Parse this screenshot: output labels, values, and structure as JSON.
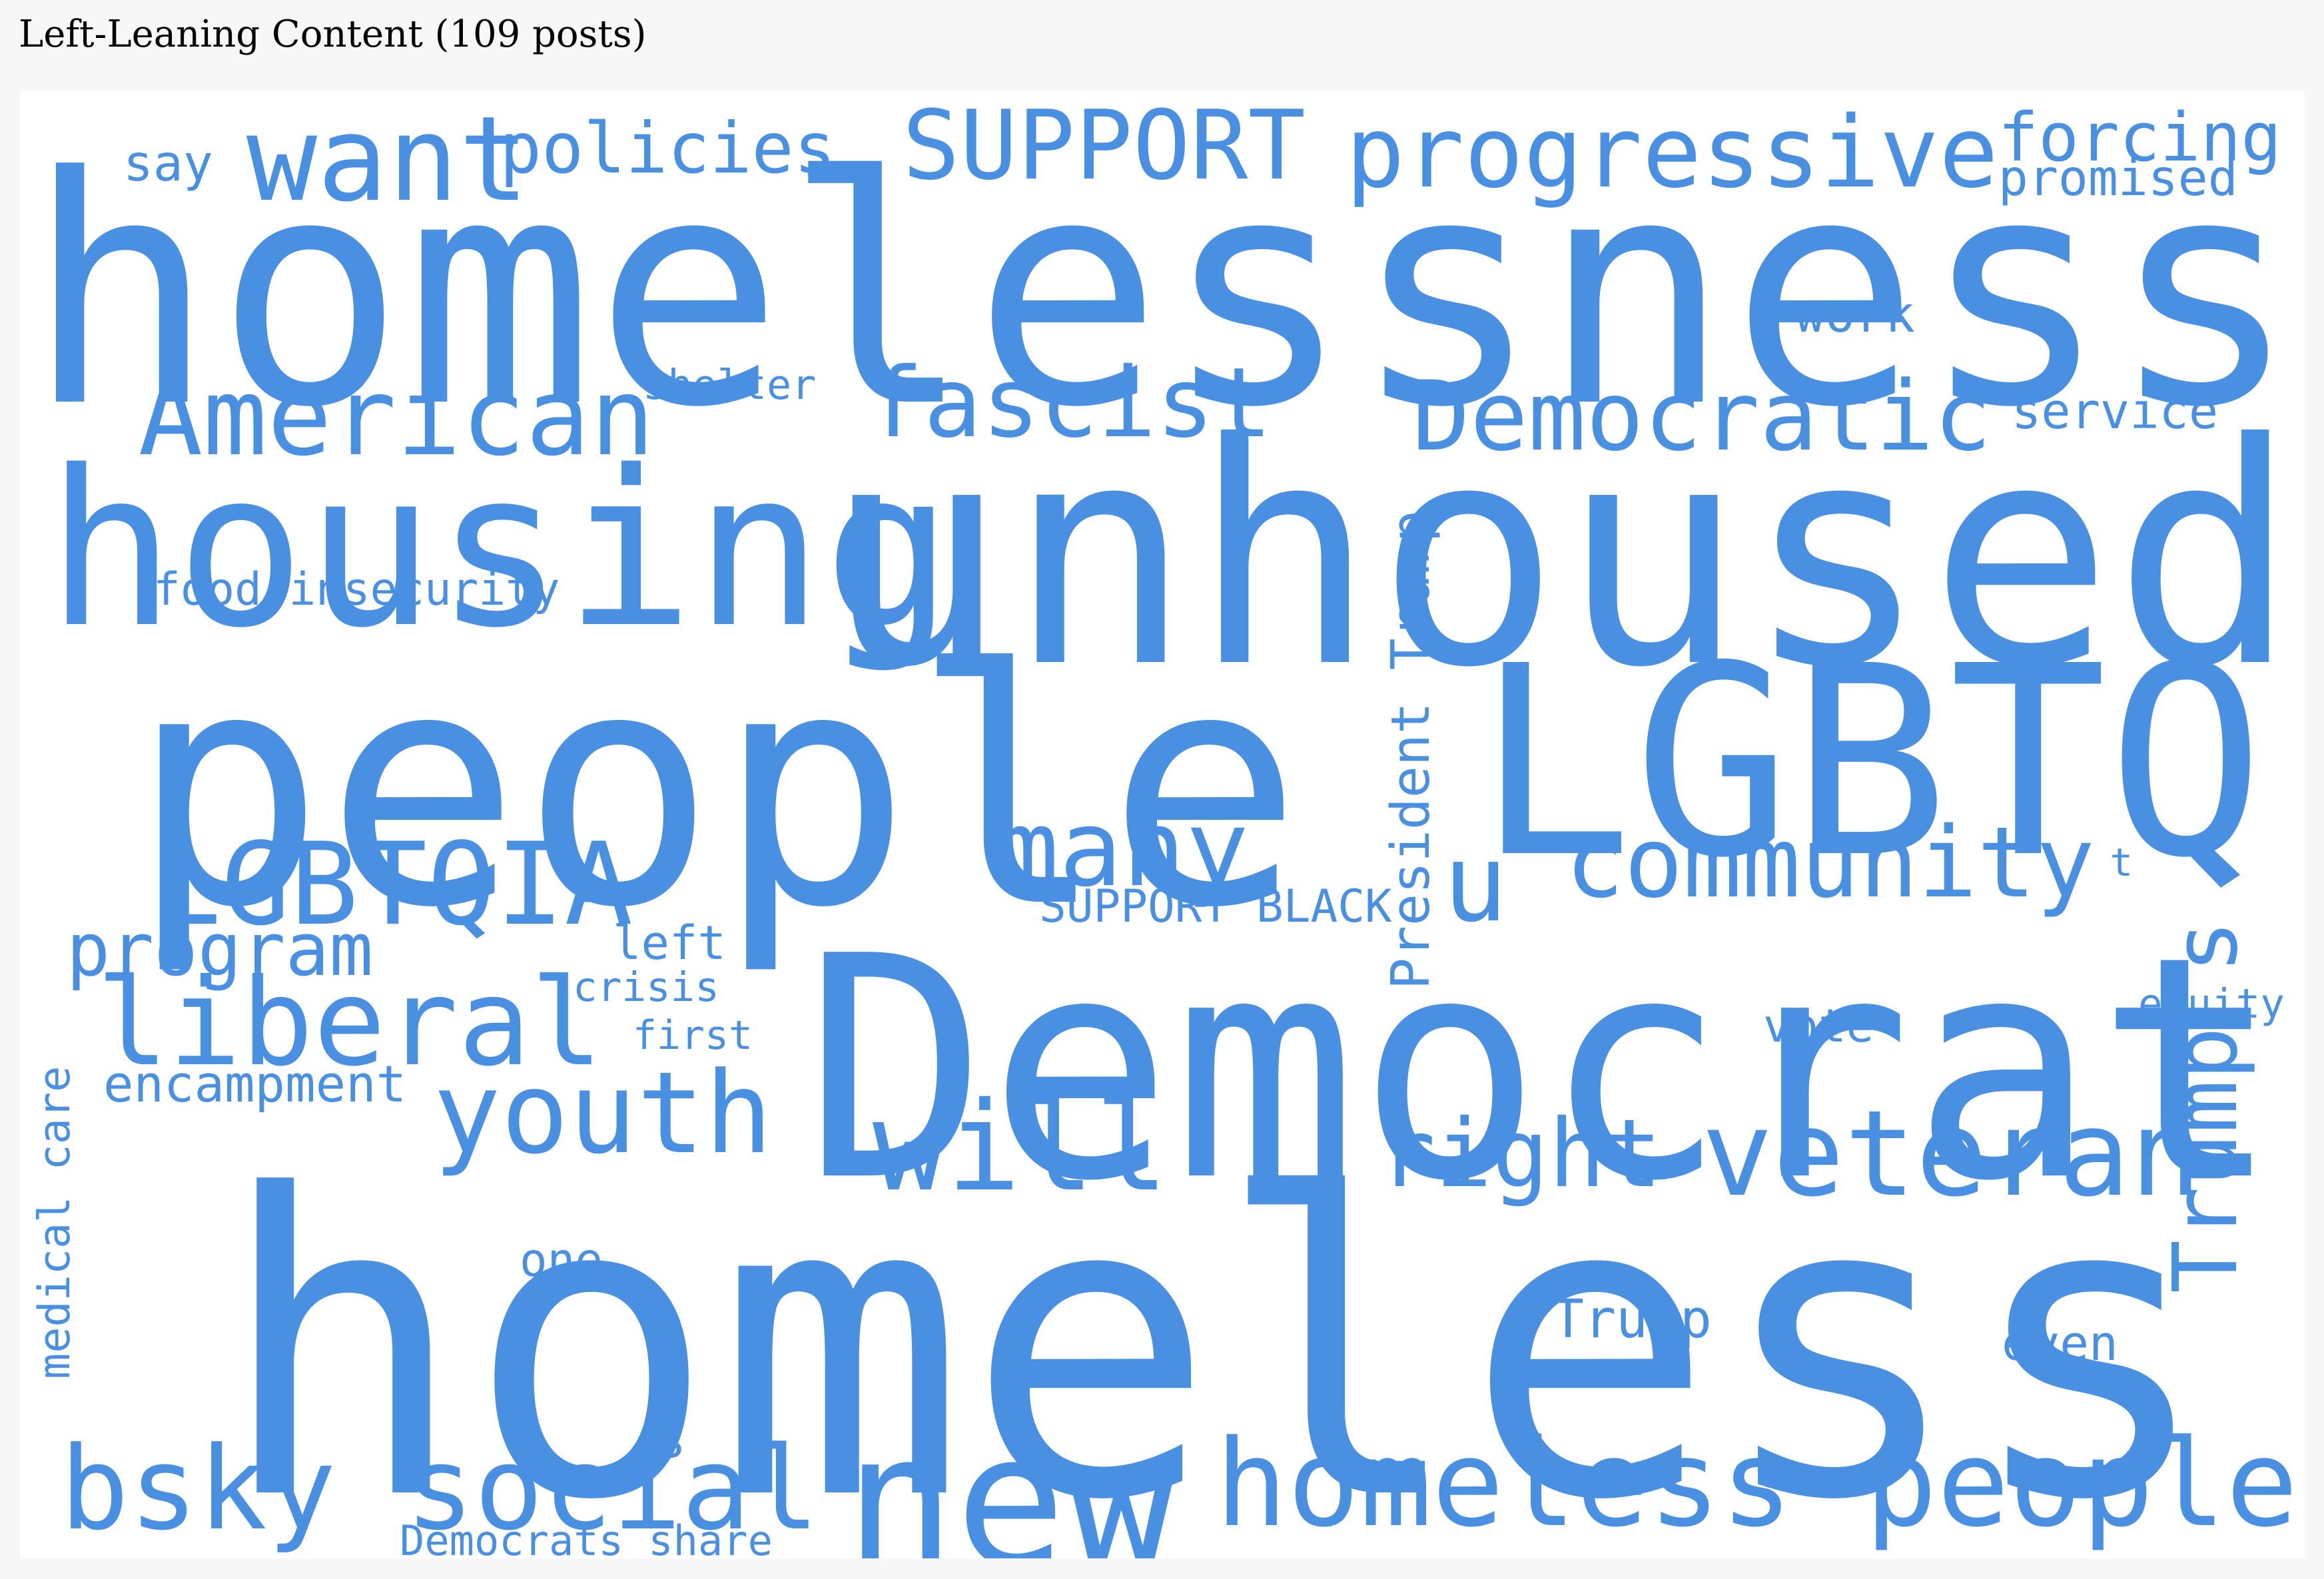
{
  "title": "Left-Leaning Content (109 posts)",
  "word_color": "#4a90e2",
  "words": [
    "homelessness",
    "people",
    "Democrat",
    "homeless",
    "housing",
    "unhoused",
    "LGBTQ",
    "new",
    "homeless people",
    "bsky social",
    "LGBTQIA",
    "liberal",
    "youth",
    "veteran",
    "progressive",
    "SUPPORT",
    "want",
    "fascist",
    "Democratic",
    "American",
    "policies",
    "forcing",
    "many",
    "u",
    "community",
    "will",
    "right",
    "Trump s",
    "program",
    "President Trump",
    "medical care",
    "food insecurity",
    "SUPPORT BLACK",
    "say",
    "promised",
    "work",
    "shelter",
    "service",
    "left",
    "crisis",
    "first",
    "encampment",
    "vote",
    "equity",
    "t",
    "one",
    "Trump",
    "even",
    "s",
    "Democrats share"
  ]
}
